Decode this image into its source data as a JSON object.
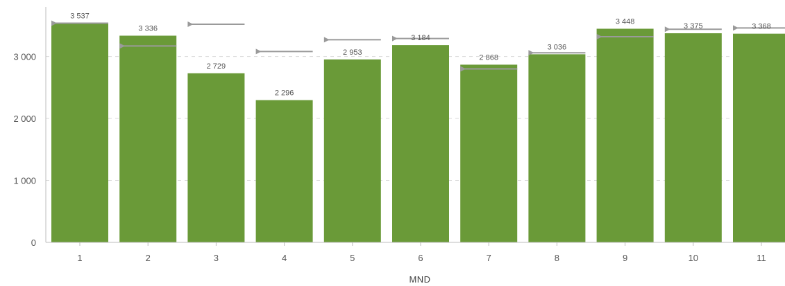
{
  "chart_data": {
    "type": "bar",
    "categories": [
      "1",
      "2",
      "3",
      "4",
      "5",
      "6",
      "7",
      "8",
      "9",
      "10",
      "11"
    ],
    "series": [
      {
        "values": [
          3537,
          3336,
          2729,
          2296,
          2953,
          3184,
          2868,
          3036,
          3448,
          3375,
          3368
        ]
      },
      {
        "values": [
          3537,
          3170,
          3520,
          3080,
          3270,
          3290,
          2800,
          3060,
          3320,
          3440,
          3460
        ]
      }
    ],
    "data_labels": [
      "3 537",
      "3 336",
      "2 729",
      "2 296",
      "2 953",
      "3 184",
      "2 868",
      "3 036",
      "3 448",
      "3 375",
      "3 368"
    ],
    "y_ticks": [
      0,
      1000,
      2000,
      3000
    ],
    "y_tick_labels": [
      "0",
      "1 000",
      "2 000",
      "3 000"
    ],
    "xlabel": "MND",
    "ylim": [
      0,
      3800
    ],
    "grid": true,
    "colors": {
      "bar": "#6a9a38",
      "marker": "#9a9a9a",
      "grid": "#d9d9d9",
      "axis": "#bdbdbd"
    }
  }
}
